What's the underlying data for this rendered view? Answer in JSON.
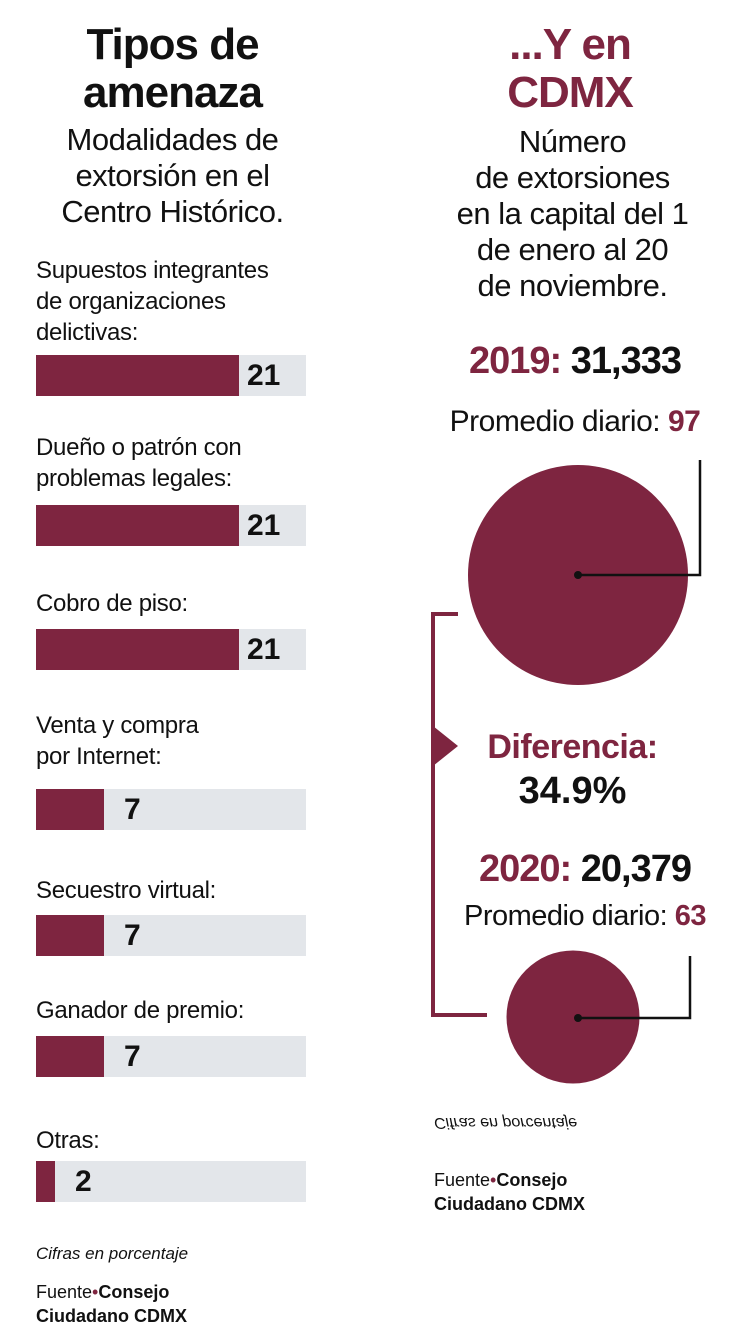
{
  "colors": {
    "accent": "#7e2540",
    "track": "#e3e6ea",
    "text": "#111111"
  },
  "left": {
    "title_line1": "Tipos de",
    "title_line2": "amenaza",
    "subtitle_lines": [
      "Modalidades de",
      "extorsión en el",
      "Centro Histórico."
    ],
    "note": "Cifras en porcentaje",
    "source_prefix": "Fuente",
    "source_line1": "Consejo",
    "source_line2": "Ciudadano CDMX"
  },
  "right": {
    "title_line1": "...Y en",
    "title_line2": "CDMX",
    "subtitle_lines": [
      "Número",
      "de extorsiones",
      "en la capital del 1",
      "de enero al 20",
      "de noviembre."
    ],
    "y2019_label": "2019:",
    "y2019_value": "31,333",
    "avg2019_label": "Promedio diario:",
    "avg2019_value": "97",
    "diff_label": "Diferencia:",
    "diff_value": "34.9%",
    "y2020_label": "2020:",
    "y2020_value": "20,379",
    "avg2020_label": "Promedio diario:",
    "avg2020_value": "63",
    "note_mirrored": "Cifras en porcentaje",
    "source_prefix": "Fuente",
    "source_line1": "Consejo",
    "source_line2": "Ciudadano CDMX"
  },
  "chart_data": [
    {
      "type": "bar",
      "title": "Tipos de amenaza",
      "subtitle": "Modalidades de extorsión en el Centro Histórico.",
      "unit": "Cifras en porcentaje",
      "max": 28,
      "categories": [
        [
          "Supuestos integrantes",
          "de organizaciones",
          "delictivas:"
        ],
        [
          "Dueño o patrón con",
          "problemas legales:"
        ],
        [
          "Cobro de piso:"
        ],
        [
          "Venta y compra",
          "por Internet:"
        ],
        [
          "Secuestro virtual:"
        ],
        [
          "Ganador de premio:"
        ],
        [
          "Otras:"
        ]
      ],
      "values": [
        21,
        21,
        21,
        7,
        7,
        7,
        2
      ]
    },
    {
      "type": "pie",
      "title": "...Y en CDMX",
      "categories": [
        "2019",
        "2020"
      ],
      "values": [
        31333,
        20379
      ],
      "daily_average": [
        97,
        63
      ],
      "difference_percent": 34.9
    }
  ]
}
